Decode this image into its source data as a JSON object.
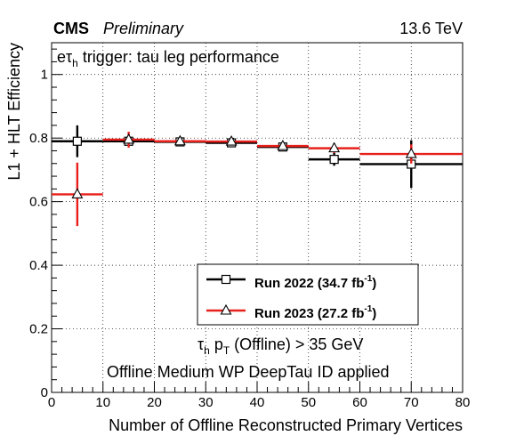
{
  "chart_data": {
    "type": "scatter",
    "experiment": "CMS",
    "status": "Preliminary",
    "energy": "13.6 TeV",
    "title_parts": {
      "pre": "eτ",
      "sub": "h",
      "post": " trigger: tau leg performance"
    },
    "xlabel": "Number of Offline Reconstructed Primary Vertices",
    "ylabel": "L1 + HLT Efficiency",
    "xlim": [
      0,
      80
    ],
    "ylim": [
      0,
      1.1
    ],
    "x_ticks": [
      "0",
      "10",
      "20",
      "30",
      "40",
      "50",
      "60",
      "70",
      "80"
    ],
    "y_ticks": [
      "0",
      "0.2",
      "0.4",
      "0.6",
      "0.8",
      "1"
    ],
    "x_tick_values": [
      0,
      10,
      20,
      30,
      40,
      50,
      60,
      70,
      80
    ],
    "y_tick_values": [
      0,
      0.2,
      0.4,
      0.6,
      0.8,
      1.0
    ],
    "grid": true,
    "legend_position": "lower-center",
    "series": [
      {
        "name": "Run 2022 (34.7 fb-1)",
        "legend_parts": {
          "pre": "Run 2022 (34.7 fb",
          "sup": "-1",
          "post": ")"
        },
        "color": "#000000",
        "marker": "square",
        "points": [
          {
            "x": 5,
            "xlo": 0,
            "xhi": 10,
            "y": 0.79,
            "yerr": 0.05
          },
          {
            "x": 15,
            "xlo": 10,
            "xhi": 20,
            "y": 0.79,
            "yerr": 0.01
          },
          {
            "x": 25,
            "xlo": 20,
            "xhi": 30,
            "y": 0.788,
            "yerr": 0.01
          },
          {
            "x": 35,
            "xlo": 30,
            "xhi": 40,
            "y": 0.785,
            "yerr": 0.01
          },
          {
            "x": 45,
            "xlo": 40,
            "xhi": 50,
            "y": 0.772,
            "yerr": 0.01
          },
          {
            "x": 55,
            "xlo": 50,
            "xhi": 60,
            "y": 0.733,
            "yerr": 0.02
          },
          {
            "x": 70,
            "xlo": 60,
            "xhi": 80,
            "y": 0.718,
            "yerr": 0.075
          }
        ]
      },
      {
        "name": "Run 2023 (27.2 fb-1)",
        "legend_parts": {
          "pre": "Run 2023 (27.2 fb",
          "sup": "-1",
          "post": ")"
        },
        "color": "#e8201c",
        "marker": "triangle",
        "points": [
          {
            "x": 5,
            "xlo": 0,
            "xhi": 10,
            "y": 0.623,
            "yerr": 0.1
          },
          {
            "x": 15,
            "xlo": 10,
            "xhi": 20,
            "y": 0.795,
            "yerr": 0.025
          },
          {
            "x": 25,
            "xlo": 20,
            "xhi": 30,
            "y": 0.79,
            "yerr": 0.012
          },
          {
            "x": 35,
            "xlo": 30,
            "xhi": 40,
            "y": 0.789,
            "yerr": 0.01
          },
          {
            "x": 45,
            "xlo": 40,
            "xhi": 50,
            "y": 0.775,
            "yerr": 0.01
          },
          {
            "x": 55,
            "xlo": 50,
            "xhi": 60,
            "y": 0.768,
            "yerr": 0.015
          },
          {
            "x": 70,
            "xlo": 60,
            "xhi": 80,
            "y": 0.75,
            "yerr": 0.03
          }
        ]
      }
    ],
    "annotation_line1": {
      "pre": "τ",
      "sub1": "h",
      "mid": " p",
      "sub2": "T",
      "post": " (Offline) > 35 GeV"
    },
    "annotation_line2": "Offline Medium WP DeepTau ID applied"
  }
}
